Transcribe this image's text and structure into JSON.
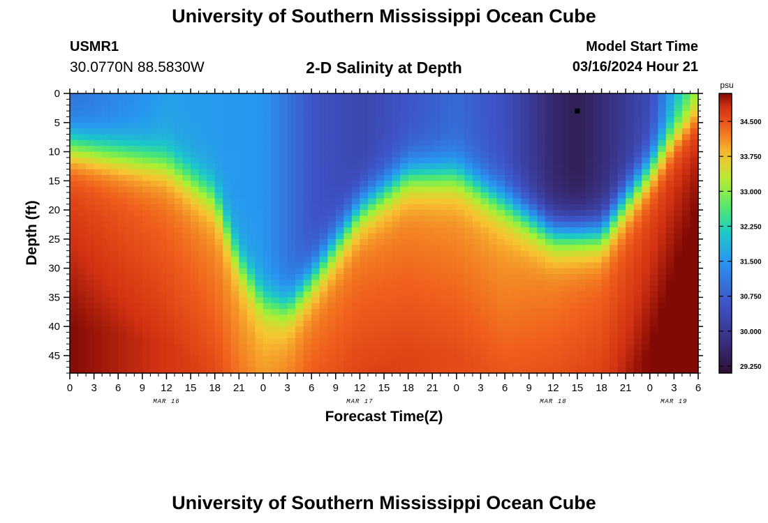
{
  "page": {
    "title": "University of Southern Mississippi Ocean Cube",
    "footer_title": "University of Southern Mississippi Ocean Cube"
  },
  "station": {
    "id": "USMR1",
    "coords": "30.0770N  88.5830W"
  },
  "model": {
    "label": "Model Start Time",
    "value": "03/16/2024 Hour 21"
  },
  "chart_data": {
    "type": "heatmap",
    "title": "2-D Salinity at Depth",
    "xlabel": "Forecast Time(Z)",
    "ylabel": "Depth (ft)",
    "x_range_hours": [
      0,
      78
    ],
    "y_range_ft": [
      0,
      48
    ],
    "x_tick_labels": [
      "0",
      "3",
      "6",
      "9",
      "12",
      "15",
      "18",
      "21",
      "0",
      "3",
      "6",
      "9",
      "12",
      "15",
      "18",
      "21",
      "0",
      "3",
      "6",
      "9",
      "12",
      "15",
      "18",
      "21",
      "0",
      "3",
      "6"
    ],
    "x_tick_hours": [
      0,
      3,
      6,
      9,
      12,
      15,
      18,
      21,
      24,
      27,
      30,
      33,
      36,
      39,
      42,
      45,
      48,
      51,
      54,
      57,
      60,
      63,
      66,
      69,
      72,
      75,
      78
    ],
    "date_labels": [
      {
        "label": "MAR 16",
        "hour": 12
      },
      {
        "label": "MAR 17",
        "hour": 36
      },
      {
        "label": "MAR 18",
        "hour": 60
      },
      {
        "label": "MAR 19",
        "hour": 75
      }
    ],
    "y_tick_labels": [
      "0",
      "5",
      "10",
      "15",
      "20",
      "25",
      "30",
      "35",
      "40",
      "45"
    ],
    "y_ticks": [
      0,
      5,
      10,
      15,
      20,
      25,
      30,
      35,
      40,
      45
    ],
    "colorbar": {
      "unit": "psu",
      "range": [
        29.1,
        35.1
      ],
      "tick_labels": [
        "34.500",
        "33.750",
        "33.000",
        "32.250",
        "31.500",
        "30.750",
        "30.000",
        "29.250"
      ],
      "tick_values": [
        34.5,
        33.75,
        33.0,
        32.25,
        31.5,
        30.75,
        30.0,
        29.25
      ]
    },
    "marker": {
      "hour": 63,
      "depth_ft": 3
    },
    "halocline_depth_ft": {
      "hours": [
        0,
        6,
        12,
        18,
        21,
        24,
        27,
        30,
        36,
        42,
        48,
        54,
        60,
        66,
        72,
        75,
        78
      ],
      "depths": [
        9,
        10.5,
        12,
        18,
        29,
        36,
        37,
        32,
        20,
        14,
        14,
        19,
        24,
        24,
        13,
        7,
        3
      ]
    },
    "surface_salinity_psu": {
      "hours": [
        0,
        12,
        24,
        30,
        36,
        48,
        54,
        60,
        63,
        66,
        72,
        75,
        78
      ],
      "values": [
        31.0,
        31.6,
        31.5,
        30.6,
        30.3,
        30.9,
        30.5,
        29.6,
        29.4,
        29.7,
        30.4,
        31.8,
        32.9
      ]
    },
    "bottom_salinity_psu": {
      "hours": [
        0,
        18,
        24,
        30,
        36,
        54,
        66,
        72,
        78
      ],
      "values": [
        34.6,
        34.1,
        33.9,
        34.2,
        34.2,
        34.0,
        34.3,
        34.6,
        34.9
      ]
    }
  }
}
